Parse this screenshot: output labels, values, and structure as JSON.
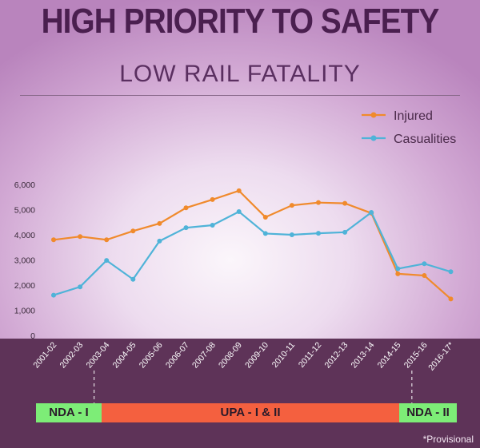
{
  "header": {
    "title": "HIGH PRIORITY TO SAFETY",
    "subtitle": "LOW RAIL FATALITY"
  },
  "eras": {
    "nda1": "NDA - I",
    "upa": "UPA - I & II",
    "nda2": "NDA - II"
  },
  "footnote": "*Provisional",
  "colors": {
    "injured": "#f08a2c",
    "casualities": "#4fb3d8",
    "band": "#5e3358",
    "nda": "#7ded77",
    "upa": "#f4603f",
    "title": "#4a1f4f"
  },
  "chart_data": {
    "type": "line",
    "title": "",
    "xlabel": "",
    "ylabel": "",
    "x": [
      "2001-02",
      "2002-03",
      "2003-04",
      "2004-05",
      "2005-06",
      "2006-07",
      "2007-08",
      "2008-09",
      "2009-10",
      "2010-11",
      "2011-12",
      "2012-13",
      "2013-14",
      "2014-15",
      "2015-16",
      "2016-17*"
    ],
    "series": [
      {
        "name": "Injured",
        "color": "#f08a2c",
        "values": [
          3800,
          3930,
          3800,
          4150,
          4450,
          5070,
          5400,
          5750,
          4700,
          5170,
          5280,
          5250,
          4860,
          2450,
          2380,
          1450
        ]
      },
      {
        "name": "Casualities",
        "color": "#4fb3d8",
        "values": [
          1600,
          1930,
          2980,
          2230,
          3750,
          4280,
          4380,
          4920,
          4050,
          4000,
          4060,
          4100,
          4890,
          2650,
          2850,
          2530
        ]
      }
    ],
    "ylim": [
      0,
      6000
    ],
    "yticks": [
      0,
      1000,
      2000,
      3000,
      4000,
      5000,
      6000
    ],
    "ytick_labels": [
      "0",
      "1,000",
      "2,000",
      "3,000",
      "4,000",
      "5,000",
      "6,000"
    ],
    "grid": false,
    "legend_position": "top-right"
  }
}
